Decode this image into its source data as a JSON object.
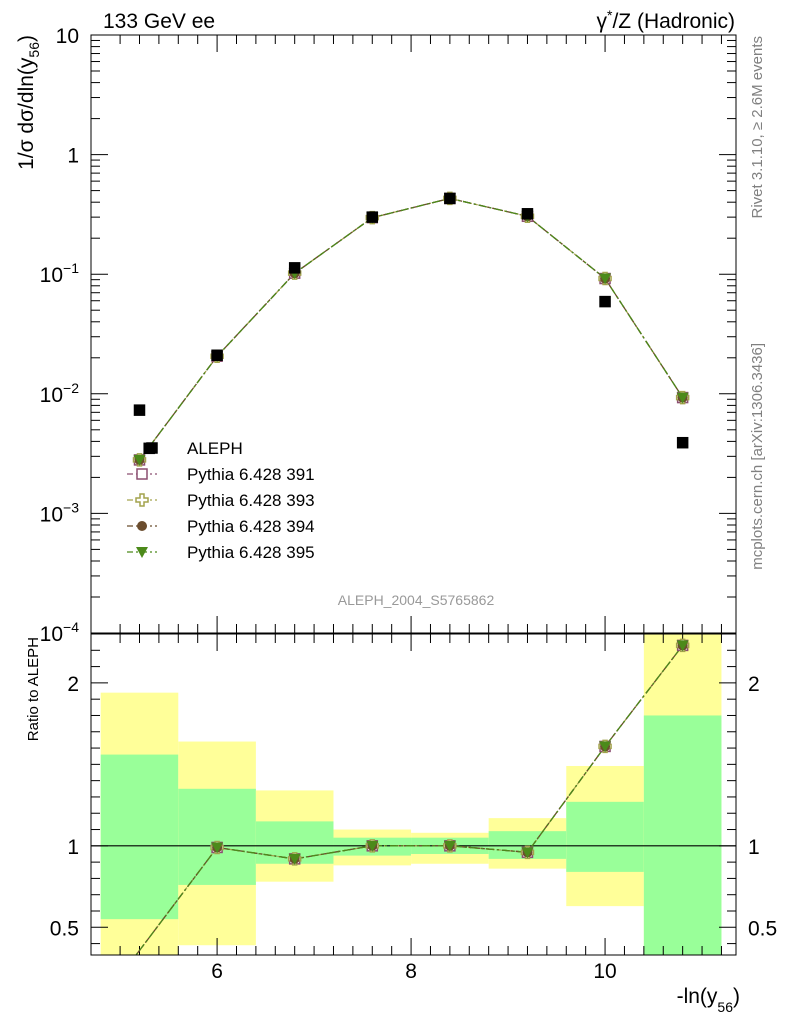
{
  "header": {
    "left": "133 GeV ee",
    "right_base": "γ",
    "right_sup": "*",
    "right_rest": "/Z (Hadronic)"
  },
  "side_labels": {
    "top": "Rivet 3.1.10, ≥ 2.6M events",
    "bottom": "mcplots.cern.ch [arXiv:1306.3436]"
  },
  "analysis_id": "ALEPH_2004_S5765862",
  "colors": {
    "band_yellow": "#ffff99",
    "band_green": "#99ff99",
    "data": "#000000",
    "p391": "#8c4f71",
    "p393": "#a3a34d",
    "p394": "#6b4d2e",
    "p395": "#4c8a1a"
  },
  "chart_data": [
    {
      "type": "scatter",
      "panel": "main",
      "log_y": true,
      "xlim": [
        4.7,
        11.35
      ],
      "ylim": [
        0.0001,
        10
      ],
      "ylabel_main": "1/σ  dσ/dln(y",
      "ylabel_sub": "56",
      "ylabel_close": ")",
      "y_tick_labels": [
        {
          "v": 10,
          "t": "10"
        },
        {
          "v": 1,
          "t": "1"
        },
        {
          "v": 0.1,
          "b": "10",
          "e": "−1"
        },
        {
          "v": 0.01,
          "b": "10",
          "e": "−2"
        },
        {
          "v": 0.001,
          "b": "10",
          "e": "−3"
        },
        {
          "v": 0.0001,
          "b": "10",
          "e": "−4"
        }
      ],
      "data_series": {
        "name": "ALEPH",
        "x": [
          5.2,
          5.3,
          6.0,
          6.8,
          7.6,
          8.4,
          9.2,
          10.0,
          10.8
        ],
        "y": [
          0.0073,
          0.0035,
          0.021,
          0.113,
          0.3,
          0.43,
          0.32,
          0.059,
          0.0039
        ]
      },
      "mc_x": [
        5.2,
        6.0,
        6.8,
        7.6,
        8.4,
        9.2,
        10.0,
        10.8
      ],
      "mc_y": [
        0.0028,
        0.0206,
        0.102,
        0.297,
        0.43,
        0.305,
        0.092,
        0.0093
      ],
      "legend": [
        {
          "name": "ALEPH",
          "marker": "square",
          "key": "data"
        },
        {
          "name": "Pythia 6.428 391",
          "marker": "open-square",
          "key": "p391"
        },
        {
          "name": "Pythia 6.428 393",
          "marker": "open-cross",
          "key": "p393"
        },
        {
          "name": "Pythia 6.428 394",
          "marker": "circle",
          "key": "p394"
        },
        {
          "name": "Pythia 6.428 395",
          "marker": "triangle-down",
          "key": "p395"
        }
      ]
    },
    {
      "type": "line",
      "panel": "ratio",
      "xlim": [
        4.7,
        11.35
      ],
      "ylim": [
        0.33,
        2.3
      ],
      "xlabel_main": "-ln(y",
      "xlabel_sub": "56",
      "xlabel_close": ")",
      "ylabel": "Ratio to ALEPH",
      "x_ticks": [
        6,
        8,
        10
      ],
      "y_ticks": [
        0.5,
        1,
        2
      ],
      "reference": 1,
      "bands": [
        {
          "x0": 4.8,
          "x1": 5.6,
          "y_lo": 0.0,
          "y_hi": 1.94,
          "g_lo": 0.55,
          "g_hi": 1.56
        },
        {
          "x0": 5.6,
          "x1": 6.4,
          "y_lo": 0.39,
          "y_hi": 1.64,
          "g_lo": 0.76,
          "g_hi": 1.35
        },
        {
          "x0": 6.4,
          "x1": 7.2,
          "y_lo": 0.78,
          "y_hi": 1.34,
          "g_lo": 0.89,
          "g_hi": 1.15
        },
        {
          "x0": 7.2,
          "x1": 8.0,
          "y_lo": 0.88,
          "y_hi": 1.1,
          "g_lo": 0.94,
          "g_hi": 1.05
        },
        {
          "x0": 8.0,
          "x1": 8.8,
          "y_lo": 0.89,
          "y_hi": 1.08,
          "g_lo": 0.95,
          "g_hi": 1.05
        },
        {
          "x0": 8.8,
          "x1": 9.6,
          "y_lo": 0.86,
          "y_hi": 1.17,
          "g_lo": 0.92,
          "g_hi": 1.09
        },
        {
          "x0": 9.6,
          "x1": 10.4,
          "y_lo": 0.63,
          "y_hi": 1.49,
          "g_lo": 0.84,
          "g_hi": 1.27
        },
        {
          "x0": 10.4,
          "x1": 11.2,
          "y_lo": 0.0,
          "y_hi": 2.4,
          "g_lo": 0.0,
          "g_hi": 1.8
        }
      ],
      "mc_x": [
        5.0,
        6.0,
        6.8,
        7.6,
        8.4,
        9.2,
        10.0,
        10.8
      ],
      "mc_ratio": [
        0.2,
        0.99,
        0.92,
        1.0,
        1.0,
        0.96,
        1.61,
        2.23
      ]
    }
  ]
}
